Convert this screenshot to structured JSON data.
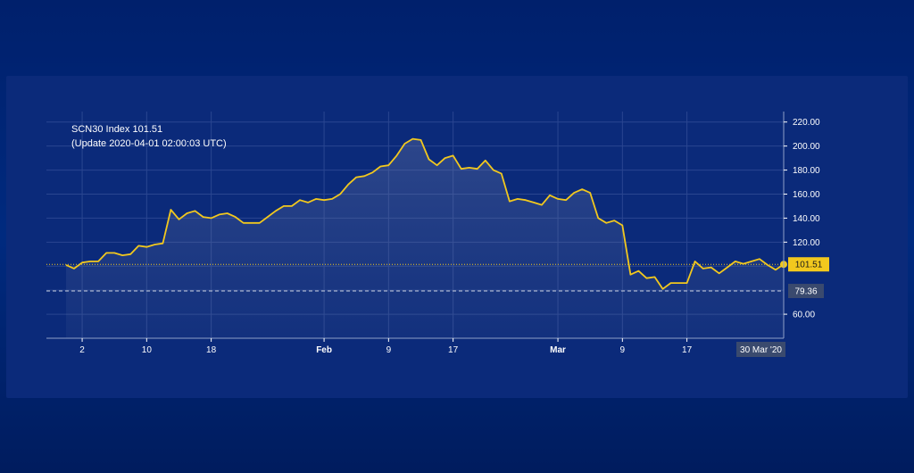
{
  "chart_data": {
    "type": "line",
    "title": "SCN30 Index 101.51",
    "subtitle": "(Update 2020-04-01 02:00:03 UTC)",
    "ylim": [
      40,
      225
    ],
    "yticks": [
      "220.00",
      "200.00",
      "180.00",
      "160.00",
      "140.00",
      "120.00",
      "60.00"
    ],
    "ytick_values": [
      220,
      200,
      180,
      160,
      140,
      120,
      60
    ],
    "xticks": [
      {
        "label": "2",
        "x": 2,
        "bold": false
      },
      {
        "label": "10",
        "x": 10,
        "bold": false
      },
      {
        "label": "18",
        "x": 18,
        "bold": false
      },
      {
        "label": "Feb",
        "x": 32,
        "bold": true
      },
      {
        "label": "9",
        "x": 40,
        "bold": false
      },
      {
        "label": "17",
        "x": 48,
        "bold": false
      },
      {
        "label": "Mar",
        "x": 61,
        "bold": true
      },
      {
        "label": "9",
        "x": 69,
        "bold": false
      },
      {
        "label": "17",
        "x": 77,
        "bold": false
      }
    ],
    "x": [
      0,
      1,
      2,
      3,
      4,
      5,
      6,
      7,
      8,
      9,
      10,
      11,
      12,
      13,
      14,
      15,
      16,
      17,
      18,
      19,
      20,
      21,
      22,
      23,
      24,
      25,
      26,
      27,
      28,
      29,
      30,
      31,
      32,
      33,
      34,
      35,
      36,
      37,
      38,
      39,
      40,
      41,
      42,
      43,
      44,
      45,
      46,
      47,
      48,
      49,
      50,
      51,
      52,
      53,
      54,
      55,
      56,
      57,
      58,
      59,
      60,
      61,
      62,
      63,
      64,
      65,
      66,
      67,
      68,
      69,
      70,
      71,
      72,
      73,
      74,
      75,
      76,
      77,
      78,
      79,
      80,
      81,
      82,
      83,
      84,
      85,
      86,
      87,
      88,
      89
    ],
    "series": [
      {
        "color": "#f2c81e",
        "values": [
          101,
          98,
          103,
          104,
          104,
          111,
          111,
          109,
          110,
          117,
          116,
          118,
          119,
          147,
          139,
          144,
          146,
          141,
          140,
          143,
          144,
          141,
          136,
          136,
          136,
          141,
          146,
          150,
          150,
          155,
          153,
          156,
          155,
          156,
          160,
          168,
          174,
          175,
          178,
          183,
          184,
          192,
          202,
          206,
          205,
          189,
          184,
          190,
          192,
          181,
          182,
          181,
          188,
          180,
          177,
          154,
          156,
          155,
          153,
          151,
          159,
          156,
          155,
          161,
          164,
          161,
          140,
          136,
          138,
          134,
          93,
          96,
          90,
          91,
          81,
          86,
          86,
          86,
          104,
          98,
          99,
          94,
          99,
          104,
          102,
          104,
          106,
          101,
          97,
          101.51
        ]
      }
    ],
    "last_value_label": "101.51",
    "reference_label": "79.36",
    "reference_value": 79.36,
    "last_date_label": "30 Mar '20",
    "grid": true,
    "axis_color": "#ffffff",
    "grid_color": "#2a4691"
  }
}
